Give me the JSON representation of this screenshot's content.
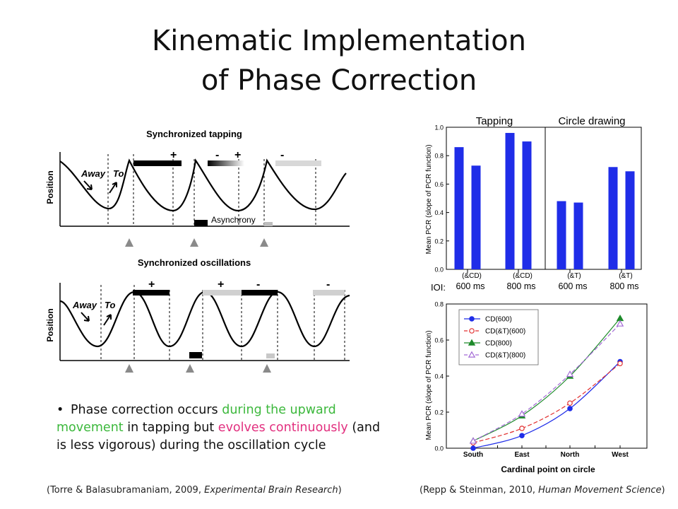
{
  "slide": {
    "title_line1": "Kinematic Implementation",
    "title_line2": "of Phase Correction",
    "bullet": {
      "part1": "Phase correction occurs ",
      "green": "during the upward movement",
      "part2": " in tapping but ",
      "pink": "evolves continuously",
      "part3": " (and is less vigorous) during the oscillation cycle"
    },
    "cite_left": {
      "prefix": "(Torre & Balasubramaniam, 2009, ",
      "journal": "Experimental Brain Research",
      "suffix": ")"
    },
    "cite_right": {
      "prefix": "(Repp & Steinman, 2010, ",
      "journal": "Human Movement Science",
      "suffix": ")"
    },
    "colors": {
      "bar": "#1f2de8",
      "green_text": "#3cb83c",
      "pink_text": "#e2307f"
    }
  },
  "left_figure": {
    "tapping": {
      "title": "Synchronized tapping",
      "ylabel": "Position",
      "away": "Away",
      "to": "To",
      "asynchrony": "Asynchrony",
      "signs": [
        "+",
        "-",
        "+",
        "-"
      ]
    },
    "oscillations": {
      "title": "Synchronized oscillations",
      "ylabel": "Position",
      "away": "Away",
      "to": "To",
      "signs": [
        "+",
        "+",
        "-",
        "-"
      ]
    }
  },
  "chart_data": [
    {
      "type": "bar",
      "panels": [
        "Tapping",
        "Circle drawing"
      ],
      "ylabel": "Mean PCR (slope of PCR function)",
      "ylim": [
        0.0,
        1.0
      ],
      "yticks": [
        "0.0",
        "0.2",
        "0.4",
        "0.6",
        "0.8",
        "1.0"
      ],
      "xlabel_prefix": "IOI:",
      "group_labels": [
        "(&CD)",
        "(&CD)",
        "(&T)",
        "(&T)"
      ],
      "group_ioi": [
        "600 ms",
        "800 ms",
        "600 ms",
        "800 ms"
      ],
      "values": [
        0.86,
        0.73,
        0.96,
        0.9,
        0.48,
        0.47,
        0.72,
        0.69
      ]
    },
    {
      "type": "line",
      "xlabel": "Cardinal point on circle",
      "ylabel": "Mean PCR (slope of PCR function)",
      "categories": [
        "South",
        "East",
        "North",
        "West"
      ],
      "ylim": [
        0.0,
        0.8
      ],
      "yticks": [
        "0.0",
        "0.2",
        "0.4",
        "0.6",
        "0.8"
      ],
      "legend_position": "top-left",
      "series": [
        {
          "name": "CD(600)",
          "values": [
            0.0,
            0.07,
            0.22,
            0.48
          ],
          "color": "#1f2de8",
          "marker": "circle-filled",
          "dash": "solid"
        },
        {
          "name": "CD(&T)(600)",
          "values": [
            0.03,
            0.11,
            0.25,
            0.47
          ],
          "color": "#e23030",
          "marker": "circle-open",
          "dash": "dashed"
        },
        {
          "name": "CD(800)",
          "values": [
            0.04,
            0.18,
            0.4,
            0.72
          ],
          "color": "#1d8a2a",
          "marker": "triangle-filled",
          "dash": "solid"
        },
        {
          "name": "CD(&T)(800)",
          "values": [
            0.04,
            0.19,
            0.41,
            0.69
          ],
          "color": "#a36ad6",
          "marker": "triangle-open",
          "dash": "dashed"
        }
      ]
    }
  ]
}
